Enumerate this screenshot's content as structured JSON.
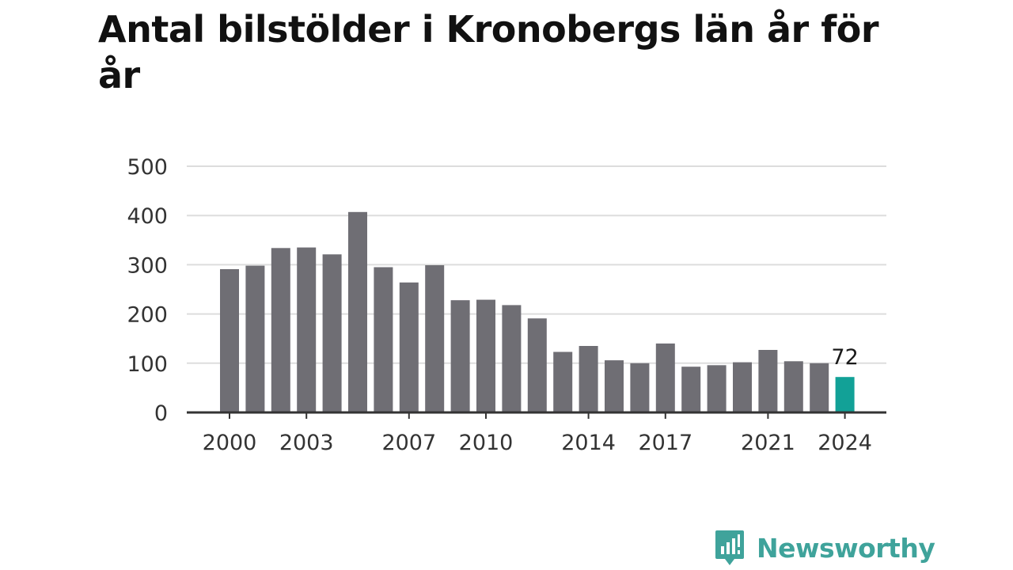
{
  "chart_data": {
    "type": "bar",
    "title": "Antal bilstölder i Kronobergs län år för år",
    "categories": [
      "2000",
      "2001",
      "2002",
      "2003",
      "2004",
      "2005",
      "2006",
      "2007",
      "2008",
      "2009",
      "2010",
      "2011",
      "2012",
      "2013",
      "2014",
      "2015",
      "2016",
      "2017",
      "2018",
      "2019",
      "2020",
      "2021",
      "2022",
      "2023",
      "2024"
    ],
    "values": [
      291,
      298,
      334,
      335,
      321,
      407,
      295,
      264,
      299,
      228,
      229,
      218,
      191,
      123,
      135,
      106,
      100,
      140,
      93,
      96,
      102,
      127,
      104,
      100,
      72
    ],
    "x_tick_labels": [
      "2000",
      "2003",
      "2007",
      "2010",
      "2014",
      "2017",
      "2021",
      "2024"
    ],
    "y_ticks": [
      "0",
      "100",
      "200",
      "300",
      "400",
      "500"
    ],
    "ylim": [
      0,
      500
    ],
    "xlabel": "",
    "ylabel": "",
    "grid": true,
    "highlight": {
      "category": "2024",
      "label": "72"
    },
    "colors": {
      "bar": "#6f6e74",
      "highlight": "#12a197",
      "grid": "#dddddd",
      "axis": "#333333"
    }
  },
  "brand": {
    "name": "Newsworthy",
    "icon": "newsworthy-logo-icon",
    "color": "#3fa39b"
  }
}
